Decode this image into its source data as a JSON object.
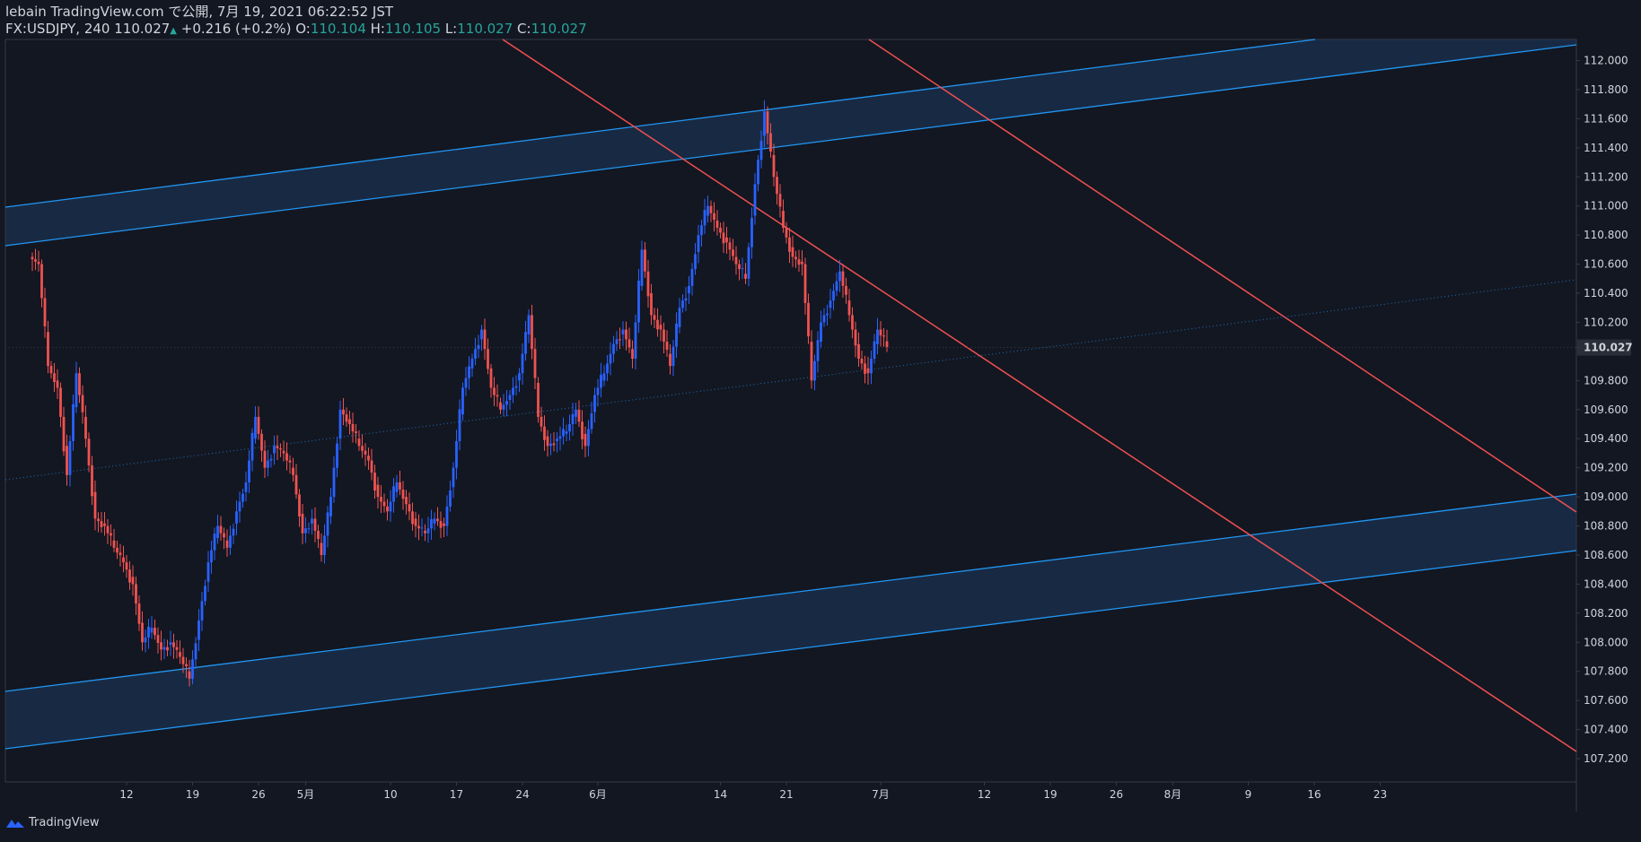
{
  "header": {
    "line1": "lebain TradingView.com で公開, 7月 19, 2021 06:22:52 JST",
    "symbol": "FX:USDJPY, 240",
    "last": "110.027",
    "change": "+0.216 (+0.2%)",
    "o_label": "O:",
    "o_val": "110.104",
    "h_label": "H:",
    "h_val": "110.105",
    "l_label": "L:",
    "l_val": "110.027",
    "c_label": "C:",
    "c_val": "110.027"
  },
  "footer": {
    "brand": "TradingView"
  },
  "colors": {
    "background": "#131722",
    "up": "#2962ff",
    "down": "#ef5350",
    "channel": "#2196f3",
    "channel_fill": "#1e3a5f",
    "trend_red": "#f05050",
    "text": "#d1d4dc",
    "value_green": "#26a69a"
  },
  "chart_data": {
    "type": "candlestick",
    "symbol": "FX:USDJPY",
    "timeframe": "240",
    "ylim": [
      107.13,
      112.22
    ],
    "y_ticks": [
      "112.000",
      "111.800",
      "111.600",
      "111.400",
      "111.200",
      "111.000",
      "110.800",
      "110.600",
      "110.400",
      "110.200",
      "110.027",
      "109.800",
      "109.600",
      "109.400",
      "109.200",
      "109.000",
      "108.800",
      "108.600",
      "108.400",
      "108.200",
      "108.000",
      "107.800",
      "107.600",
      "107.400",
      "107.200"
    ],
    "x_ticks": [
      {
        "label": "12",
        "day": 12
      },
      {
        "label": "19",
        "day": 19
      },
      {
        "label": "26",
        "day": 26
      },
      {
        "label": "5月",
        "day": 31
      },
      {
        "label": "10",
        "day": 40
      },
      {
        "label": "17",
        "day": 47
      },
      {
        "label": "24",
        "day": 54
      },
      {
        "label": "6月",
        "day": 62
      },
      {
        "label": "14",
        "day": 75
      },
      {
        "label": "21",
        "day": 82
      },
      {
        "label": "7月",
        "day": 92
      },
      {
        "label": "12",
        "day": 103
      },
      {
        "label": "19",
        "day": 110
      },
      {
        "label": "26",
        "day": 117
      },
      {
        "label": "8月",
        "day": 123
      },
      {
        "label": "9",
        "day": 131
      },
      {
        "label": "16",
        "day": 138
      },
      {
        "label": "23",
        "day": 145
      }
    ],
    "current_price": "110.027",
    "closes": [
      {
        "day": 2,
        "close": 110.6
      },
      {
        "day": 3,
        "close": 109.9
      },
      {
        "day": 4,
        "close": 109.75
      },
      {
        "day": 5,
        "close": 109.15
      },
      {
        "day": 6,
        "close": 109.85
      },
      {
        "day": 7,
        "close": 109.4
      },
      {
        "day": 8,
        "close": 108.85
      },
      {
        "day": 9,
        "close": 108.8
      },
      {
        "day": 10,
        "close": 108.65
      },
      {
        "day": 11,
        "close": 108.55
      },
      {
        "day": 12,
        "close": 108.4
      },
      {
        "day": 13,
        "close": 108.0
      },
      {
        "day": 14,
        "close": 108.1
      },
      {
        "day": 15,
        "close": 107.95
      },
      {
        "day": 16,
        "close": 108.0
      },
      {
        "day": 17,
        "close": 107.9
      },
      {
        "day": 18,
        "close": 107.75
      },
      {
        "day": 19,
        "close": 108.15
      },
      {
        "day": 20,
        "close": 108.55
      },
      {
        "day": 21,
        "close": 108.8
      },
      {
        "day": 22,
        "close": 108.65
      },
      {
        "day": 23,
        "close": 108.9
      },
      {
        "day": 24,
        "close": 109.1
      },
      {
        "day": 25,
        "close": 109.55
      },
      {
        "day": 26,
        "close": 109.2
      },
      {
        "day": 27,
        "close": 109.35
      },
      {
        "day": 28,
        "close": 109.3
      },
      {
        "day": 29,
        "close": 109.15
      },
      {
        "day": 30,
        "close": 108.75
      },
      {
        "day": 31,
        "close": 108.85
      },
      {
        "day": 32,
        "close": 108.6
      },
      {
        "day": 33,
        "close": 109.0
      },
      {
        "day": 34,
        "close": 109.6
      },
      {
        "day": 35,
        "close": 109.5
      },
      {
        "day": 36,
        "close": 109.35
      },
      {
        "day": 37,
        "close": 109.25
      },
      {
        "day": 38,
        "close": 109.0
      },
      {
        "day": 39,
        "close": 108.9
      },
      {
        "day": 40,
        "close": 109.1
      },
      {
        "day": 41,
        "close": 108.95
      },
      {
        "day": 42,
        "close": 108.8
      },
      {
        "day": 43,
        "close": 108.75
      },
      {
        "day": 44,
        "close": 108.85
      },
      {
        "day": 45,
        "close": 108.8
      },
      {
        "day": 46,
        "close": 109.2
      },
      {
        "day": 47,
        "close": 109.75
      },
      {
        "day": 48,
        "close": 109.95
      },
      {
        "day": 49,
        "close": 110.15
      },
      {
        "day": 50,
        "close": 109.75
      },
      {
        "day": 51,
        "close": 109.6
      },
      {
        "day": 52,
        "close": 109.7
      },
      {
        "day": 53,
        "close": 109.85
      },
      {
        "day": 54,
        "close": 110.25
      },
      {
        "day": 55,
        "close": 109.55
      },
      {
        "day": 56,
        "close": 109.35
      },
      {
        "day": 57,
        "close": 109.4
      },
      {
        "day": 58,
        "close": 109.45
      },
      {
        "day": 59,
        "close": 109.6
      },
      {
        "day": 60,
        "close": 109.35
      },
      {
        "day": 61,
        "close": 109.7
      },
      {
        "day": 62,
        "close": 109.85
      },
      {
        "day": 63,
        "close": 110.05
      },
      {
        "day": 64,
        "close": 110.15
      },
      {
        "day": 65,
        "close": 109.95
      },
      {
        "day": 66,
        "close": 110.7
      },
      {
        "day": 67,
        "close": 110.25
      },
      {
        "day": 68,
        "close": 110.15
      },
      {
        "day": 69,
        "close": 109.9
      },
      {
        "day": 70,
        "close": 110.3
      },
      {
        "day": 71,
        "close": 110.45
      },
      {
        "day": 72,
        "close": 110.8
      },
      {
        "day": 73,
        "close": 111.0
      },
      {
        "day": 74,
        "close": 110.85
      },
      {
        "day": 75,
        "close": 110.75
      },
      {
        "day": 76,
        "close": 110.6
      },
      {
        "day": 77,
        "close": 110.5
      },
      {
        "day": 78,
        "close": 111.15
      },
      {
        "day": 79,
        "close": 111.65
      },
      {
        "day": 80,
        "close": 111.2
      },
      {
        "day": 81,
        "close": 110.85
      },
      {
        "day": 82,
        "close": 110.65
      },
      {
        "day": 83,
        "close": 110.6
      },
      {
        "day": 84,
        "close": 109.8
      },
      {
        "day": 85,
        "close": 110.2
      },
      {
        "day": 86,
        "close": 110.35
      },
      {
        "day": 87,
        "close": 110.55
      },
      {
        "day": 88,
        "close": 110.25
      },
      {
        "day": 89,
        "close": 109.95
      },
      {
        "day": 90,
        "close": 109.85
      },
      {
        "day": 91,
        "close": 110.15
      },
      {
        "day": 92,
        "close": 110.03
      }
    ]
  },
  "drawings": {
    "upper_channel": {
      "label": "upper blue channel band"
    },
    "lower_channel": {
      "label": "lower blue channel band"
    },
    "red_lines": {
      "label": "descending red trend lines"
    }
  }
}
